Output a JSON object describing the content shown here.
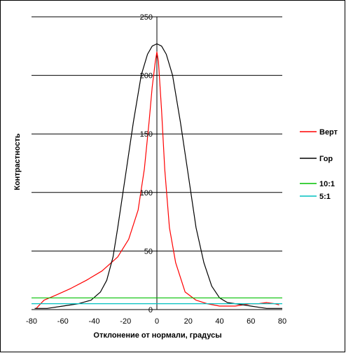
{
  "chart_data": {
    "type": "line",
    "xlabel": "Отклонение от нормали, градусы",
    "ylabel": "Контрастность",
    "xlim": [
      -80,
      80
    ],
    "ylim": [
      0,
      250
    ],
    "xticks": [
      -80,
      -60,
      -40,
      -20,
      0,
      20,
      40,
      60,
      80
    ],
    "yticks": [
      0,
      50,
      100,
      150,
      200,
      250
    ],
    "grid": "horizontal",
    "legend_position": "right",
    "series": [
      {
        "name": "Верт",
        "color": "#ff0000",
        "x": [
          -77,
          -72,
          -65,
          -55,
          -45,
          -35,
          -25,
          -18,
          -12,
          -8,
          -5,
          -3,
          -1,
          0,
          1,
          3,
          5,
          8,
          12,
          18,
          25,
          32,
          40,
          46,
          50,
          55,
          60,
          65,
          70,
          75,
          78
        ],
        "y": [
          1,
          8,
          12,
          18,
          25,
          33,
          45,
          60,
          85,
          120,
          160,
          190,
          212,
          220,
          212,
          170,
          120,
          70,
          40,
          15,
          8,
          5,
          3,
          3,
          3,
          4,
          5,
          5,
          6,
          5,
          4
        ]
      },
      {
        "name": "Гор",
        "color": "#000000",
        "x": [
          -78,
          -70,
          -60,
          -50,
          -42,
          -36,
          -32,
          -28,
          -25,
          -20,
          -15,
          -10,
          -6,
          -3,
          0,
          3,
          6,
          10,
          15,
          20,
          25,
          30,
          35,
          40,
          45,
          50,
          55,
          60,
          65,
          70,
          75,
          80
        ],
        "y": [
          1,
          1,
          3,
          5,
          8,
          15,
          25,
          45,
          70,
          115,
          160,
          200,
          218,
          225,
          227,
          225,
          218,
          200,
          160,
          115,
          70,
          40,
          20,
          10,
          6,
          5,
          4,
          3,
          2,
          1,
          1,
          1
        ]
      },
      {
        "name": "10:1",
        "color": "#00c000",
        "x": [
          -80,
          80
        ],
        "y": [
          10,
          10
        ]
      },
      {
        "name": "5:1",
        "color": "#00c0c0",
        "x": [
          -80,
          80
        ],
        "y": [
          5,
          5
        ]
      }
    ]
  }
}
